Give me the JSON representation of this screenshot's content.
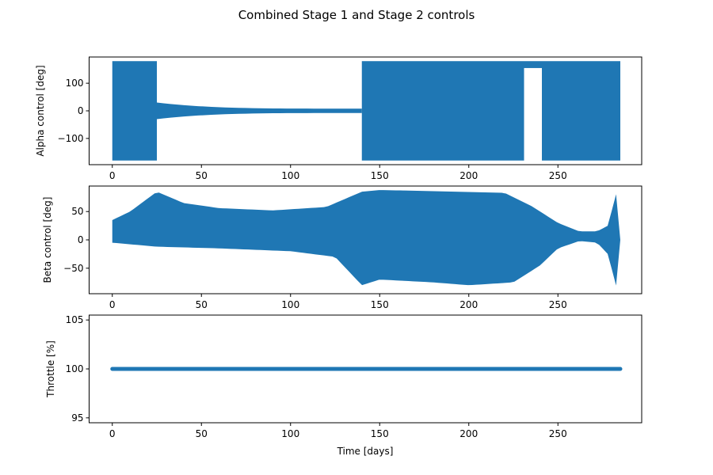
{
  "figure": {
    "title": "Combined Stage 1 and Stage 2 controls",
    "series_color": "#1f77b4"
  },
  "chart_data": [
    {
      "type": "scatter",
      "title": "",
      "xlabel": "",
      "ylabel": "Alpha control [deg]",
      "xlim": [
        -13,
        297
      ],
      "ylim": [
        -195,
        195
      ],
      "xticks": [
        0,
        50,
        100,
        150,
        200,
        250
      ],
      "yticks": [
        -100,
        0,
        100
      ],
      "series": [
        {
          "name": "Alpha control",
          "segments": [
            {
              "x0": 0,
              "x1": 25,
              "low": -180,
              "high": 180,
              "kind": "band"
            },
            {
              "x0": 25,
              "x1": 140,
              "low": -30,
              "high": 30,
              "kind": "decay",
              "end": 8
            },
            {
              "x0": 140,
              "x1": 231,
              "low": -180,
              "high": 180,
              "kind": "band"
            },
            {
              "x0": 231,
              "x1": 241,
              "low": 155,
              "high": 180,
              "kind": "band"
            },
            {
              "x0": 241,
              "x1": 285,
              "low": -180,
              "high": 180,
              "kind": "band"
            }
          ]
        }
      ]
    },
    {
      "type": "scatter",
      "title": "",
      "xlabel": "",
      "ylabel": "Beta control [deg]",
      "xlim": [
        -13,
        297
      ],
      "ylim": [
        -95,
        95
      ],
      "xticks": [
        0,
        50,
        100,
        150,
        200,
        250
      ],
      "yticks": [
        -50,
        0,
        50
      ],
      "series": [
        {
          "name": "Beta control",
          "upper": [
            [
              0,
              35
            ],
            [
              10,
              50
            ],
            [
              25,
              85
            ],
            [
              40,
              65
            ],
            [
              60,
              56
            ],
            [
              90,
              52
            ],
            [
              120,
              58
            ],
            [
              140,
              85
            ],
            [
              150,
              88
            ],
            [
              180,
              86
            ],
            [
              220,
              83
            ],
            [
              235,
              60
            ],
            [
              250,
              30
            ],
            [
              262,
              15
            ],
            [
              272,
              15
            ],
            [
              278,
              25
            ],
            [
              283,
              85
            ],
            [
              285,
              0
            ]
          ],
          "lower": [
            [
              0,
              -5
            ],
            [
              25,
              -12
            ],
            [
              60,
              -15
            ],
            [
              100,
              -20
            ],
            [
              125,
              -30
            ],
            [
              140,
              -80
            ],
            [
              150,
              -70
            ],
            [
              180,
              -75
            ],
            [
              200,
              -80
            ],
            [
              225,
              -75
            ],
            [
              240,
              -45
            ],
            [
              250,
              -15
            ],
            [
              262,
              -2
            ],
            [
              272,
              -5
            ],
            [
              278,
              -25
            ],
            [
              283,
              -85
            ],
            [
              285,
              0
            ]
          ]
        }
      ]
    },
    {
      "type": "scatter",
      "title": "",
      "xlabel": "Time [days]",
      "ylabel": "Throttle [%]",
      "xlim": [
        -13,
        297
      ],
      "ylim": [
        94.5,
        105.5
      ],
      "xticks": [
        0,
        50,
        100,
        150,
        200,
        250
      ],
      "yticks": [
        95,
        100,
        105
      ],
      "series": [
        {
          "name": "Throttle",
          "x_range": [
            0,
            285
          ],
          "value": 100
        }
      ]
    }
  ]
}
